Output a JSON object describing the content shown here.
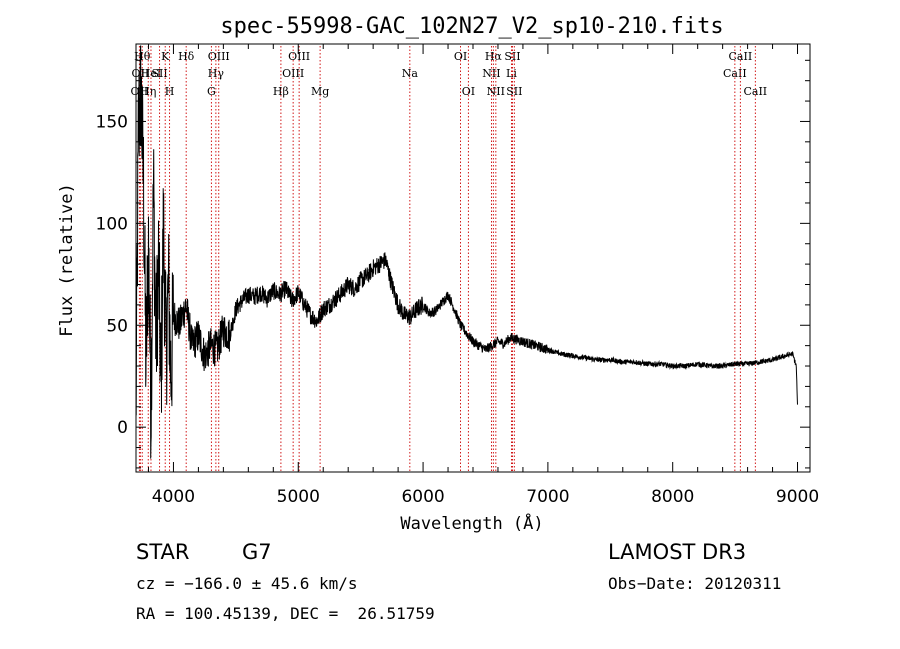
{
  "chart_data": {
    "type": "line",
    "title": "spec-55998-GAC_102N27_V2_sp10-210.fits",
    "xlabel": "Wavelength (Å)",
    "ylabel": "Flux (relative)",
    "xlim": [
      3700,
      9100
    ],
    "ylim": [
      -22,
      188
    ],
    "x_ticks": [
      4000,
      5000,
      6000,
      7000,
      8000,
      9000
    ],
    "x_tick_labels": [
      "4000",
      "5000",
      "6000",
      "7000",
      "8000",
      "9000"
    ],
    "y_ticks": [
      0,
      50,
      100,
      150
    ],
    "y_tick_labels": [
      "0",
      "50",
      "100",
      "150"
    ],
    "series": [
      {
        "name": "flux",
        "color": "#000000",
        "x": [
          3700,
          3720,
          3740,
          3760,
          3780,
          3800,
          3820,
          3840,
          3860,
          3880,
          3900,
          3920,
          3940,
          3960,
          3980,
          4000,
          4050,
          4100,
          4150,
          4200,
          4250,
          4300,
          4350,
          4400,
          4450,
          4500,
          4550,
          4600,
          4650,
          4700,
          4750,
          4800,
          4850,
          4900,
          4950,
          5000,
          5050,
          5100,
          5150,
          5200,
          5250,
          5300,
          5350,
          5400,
          5450,
          5500,
          5550,
          5600,
          5650,
          5700,
          5750,
          5800,
          5850,
          5900,
          5950,
          6000,
          6050,
          6100,
          6150,
          6200,
          6250,
          6300,
          6350,
          6400,
          6450,
          6500,
          6550,
          6600,
          6650,
          6700,
          6750,
          6800,
          6850,
          6900,
          6950,
          7000,
          7100,
          7200,
          7300,
          7400,
          7500,
          7600,
          7700,
          7800,
          7900,
          8000,
          8100,
          8200,
          8300,
          8400,
          8500,
          8600,
          8700,
          8800,
          8900,
          8960,
          8990,
          9000
        ],
        "y": [
          5,
          150,
          165,
          120,
          30,
          90,
          10,
          120,
          40,
          80,
          20,
          100,
          35,
          70,
          25,
          55,
          50,
          60,
          40,
          45,
          35,
          40,
          38,
          48,
          45,
          58,
          62,
          65,
          64,
          66,
          63,
          67,
          65,
          68,
          62,
          66,
          60,
          55,
          52,
          58,
          60,
          63,
          66,
          70,
          68,
          72,
          74,
          78,
          80,
          82,
          70,
          60,
          55,
          54,
          58,
          60,
          56,
          57,
          61,
          65,
          58,
          50,
          46,
          42,
          40,
          38,
          40,
          42,
          41,
          44,
          43,
          42,
          41,
          40,
          39,
          38,
          36,
          35,
          34,
          33,
          33,
          32,
          32,
          31,
          31,
          30,
          30,
          31,
          30,
          30,
          31,
          31,
          32,
          33,
          35,
          36,
          30,
          10
        ]
      }
    ],
    "line_markers": [
      {
        "wavelength": 3727,
        "label": "OII",
        "row": 2
      },
      {
        "wavelength": 3735,
        "label": "OII",
        "row": 1
      },
      {
        "wavelength": 3750,
        "label": "Hθ",
        "row": 0
      },
      {
        "wavelength": 3798,
        "label": "Hη",
        "row": 2
      },
      {
        "wavelength": 3820,
        "label": "HeI",
        "row": 1
      },
      {
        "wavelength": 3889,
        "label": "SII",
        "row": 1
      },
      {
        "wavelength": 3934,
        "label": "K",
        "row": 0
      },
      {
        "wavelength": 3969,
        "label": "H",
        "row": 2
      },
      {
        "wavelength": 4102,
        "label": "Hδ",
        "row": 0
      },
      {
        "wavelength": 4304,
        "label": "G",
        "row": 2
      },
      {
        "wavelength": 4340,
        "label": "Hγ",
        "row": 1
      },
      {
        "wavelength": 4363,
        "label": "OIII",
        "row": 0
      },
      {
        "wavelength": 4861,
        "label": "Hβ",
        "row": 2
      },
      {
        "wavelength": 4959,
        "label": "OIII",
        "row": 1
      },
      {
        "wavelength": 5007,
        "label": "OIII",
        "row": 0
      },
      {
        "wavelength": 5175,
        "label": "Mg",
        "row": 2
      },
      {
        "wavelength": 5894,
        "label": "Na",
        "row": 1
      },
      {
        "wavelength": 6300,
        "label": "OI",
        "row": 0
      },
      {
        "wavelength": 6363,
        "label": "OI",
        "row": 2
      },
      {
        "wavelength": 6548,
        "label": "NII",
        "row": 1
      },
      {
        "wavelength": 6563,
        "label": "Hα",
        "row": 0
      },
      {
        "wavelength": 6583,
        "label": "NII",
        "row": 2
      },
      {
        "wavelength": 6708,
        "label": "Li",
        "row": 1
      },
      {
        "wavelength": 6716,
        "label": "SII",
        "row": 0
      },
      {
        "wavelength": 6731,
        "label": "SII",
        "row": 2
      },
      {
        "wavelength": 8498,
        "label": "CaII",
        "row": 1
      },
      {
        "wavelength": 8542,
        "label": "CaII",
        "row": 0
      },
      {
        "wavelength": 8662,
        "label": "CaII",
        "row": 2
      }
    ],
    "marker_color": "#cc0000"
  },
  "info": {
    "class": "STAR",
    "subclass": "G7",
    "survey": "LAMOST DR3",
    "cz": "cz = −166.0 ± 45.6 km/s",
    "obs_date": "Obs−Date: 20120311",
    "radec": "RA = 100.45139, DEC =  26.51759"
  }
}
